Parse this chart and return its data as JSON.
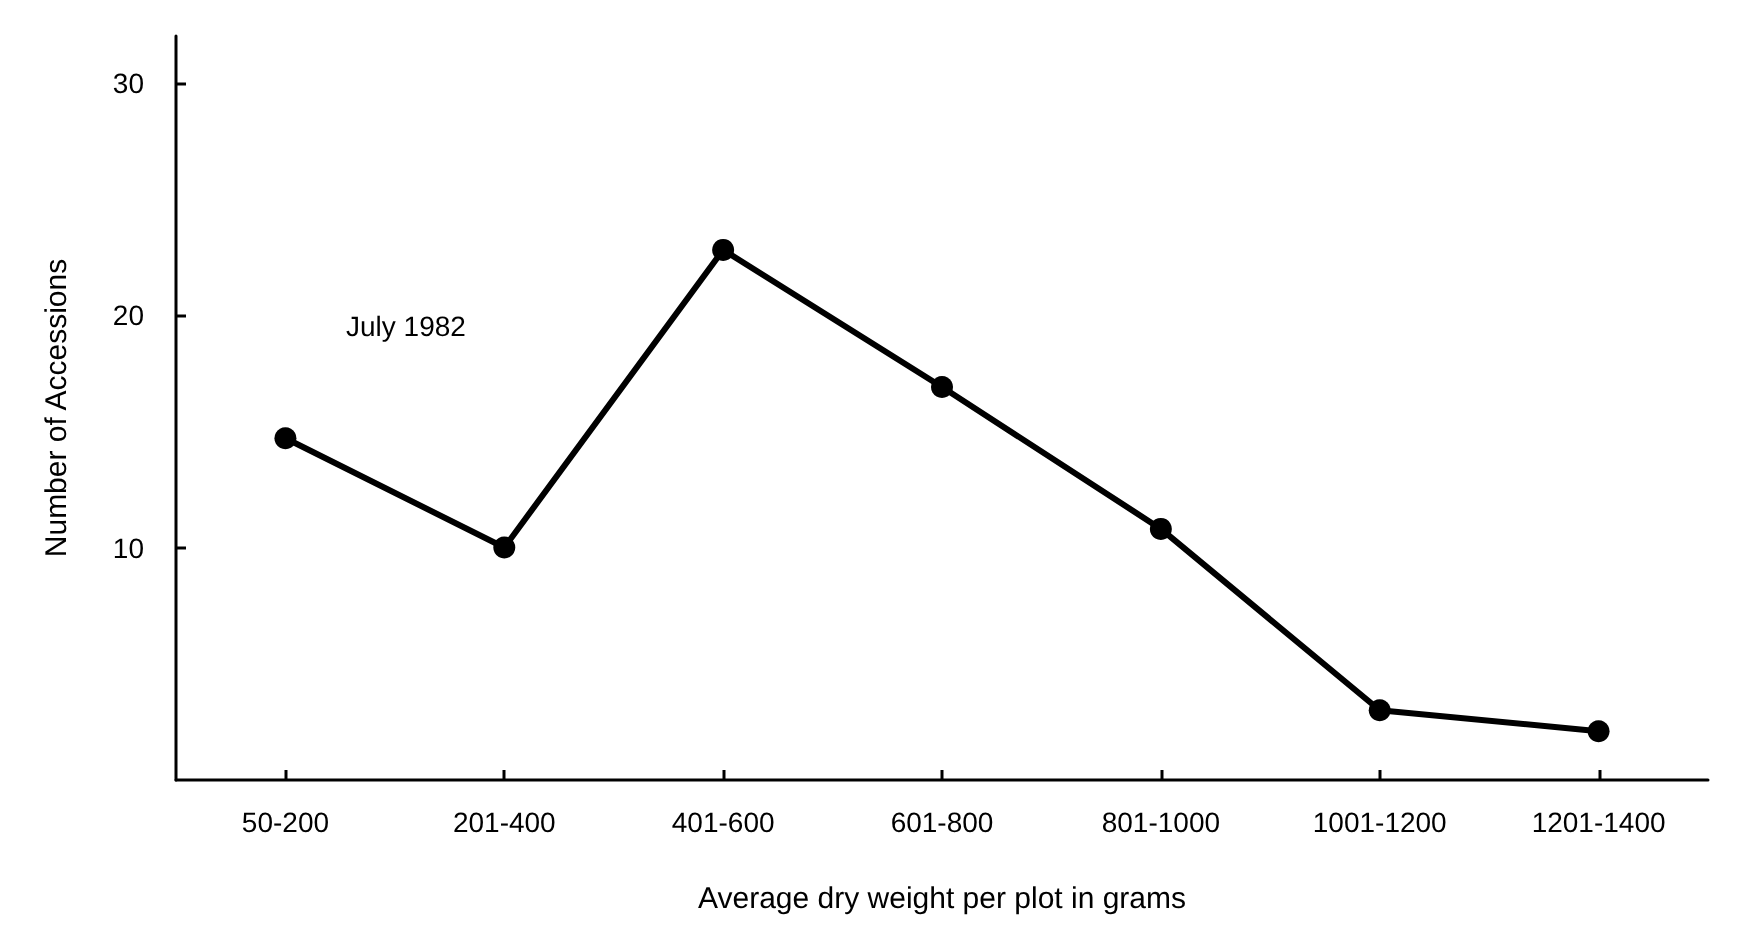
{
  "chart_data": {
    "type": "line",
    "xlabel": "Average dry weight per plot in grams",
    "ylabel": "Number of Accessions",
    "categories": [
      "50-200",
      "201-400",
      "401-600",
      "601-800",
      "801-1000",
      "1001-1200",
      "1201-1400"
    ],
    "series": [
      {
        "color": "#000000",
        "values": [
          14.7,
          10,
          22.8,
          16.9,
          10.8,
          3,
          2.1
        ]
      }
    ],
    "ylim": [
      0,
      32
    ],
    "yticks": [
      10,
      20,
      30
    ],
    "marker": "circle",
    "line_style": "solid",
    "annotations": [
      "July 1982"
    ]
  }
}
